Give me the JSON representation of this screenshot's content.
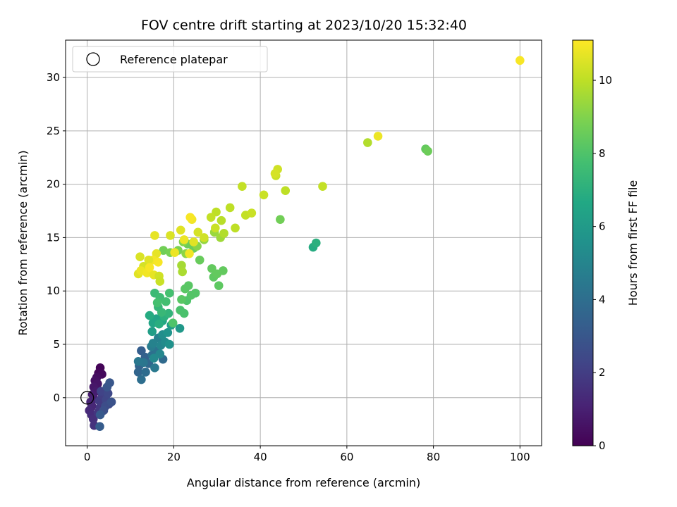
{
  "chart_data": {
    "type": "scatter",
    "title": "FOV centre drift starting at 2023/10/20 15:32:40",
    "xlabel": "Angular distance from reference (arcmin)",
    "ylabel": "Rotation from reference (arcmin)",
    "xlim": [
      -5,
      105
    ],
    "ylim": [
      -4.5,
      33.5
    ],
    "xticks": [
      0,
      20,
      40,
      60,
      80,
      100
    ],
    "yticks": [
      0,
      5,
      10,
      15,
      20,
      25,
      30
    ],
    "grid": true,
    "legend_position": "top-left",
    "legend": [
      {
        "label": "Reference platepar",
        "marker": "open-circle",
        "color": "#000000"
      }
    ],
    "reference_point": {
      "x": 0,
      "y": 0
    },
    "colorbar": {
      "label": "Hours from first FF file",
      "colormap": "viridis",
      "range": [
        0,
        11.1
      ],
      "ticks": [
        0,
        2,
        4,
        6,
        8,
        10
      ]
    },
    "points": [
      {
        "x": 3.0,
        "y": 2.8,
        "c": 0.1
      },
      {
        "x": 2.6,
        "y": 2.3,
        "c": 0.2
      },
      {
        "x": 3.4,
        "y": 2.2,
        "c": 0.3
      },
      {
        "x": 2.2,
        "y": 1.9,
        "c": 0.4
      },
      {
        "x": 1.8,
        "y": 1.6,
        "c": 0.5
      },
      {
        "x": 2.4,
        "y": 1.3,
        "c": 0.6
      },
      {
        "x": 1.5,
        "y": 1.0,
        "c": 0.7
      },
      {
        "x": 2.0,
        "y": 0.6,
        "c": 0.8
      },
      {
        "x": 1.2,
        "y": 0.3,
        "c": 0.9
      },
      {
        "x": 1.6,
        "y": -0.1,
        "c": 1.0
      },
      {
        "x": 0.8,
        "y": -0.4,
        "c": 1.1
      },
      {
        "x": 1.1,
        "y": -0.8,
        "c": 1.2
      },
      {
        "x": 0.5,
        "y": -1.2,
        "c": 1.3
      },
      {
        "x": 1.0,
        "y": -1.6,
        "c": 1.4
      },
      {
        "x": 1.4,
        "y": -2.0,
        "c": 1.5
      },
      {
        "x": 1.6,
        "y": -2.6,
        "c": 1.6
      },
      {
        "x": 2.5,
        "y": -1.4,
        "c": 1.7
      },
      {
        "x": 3.0,
        "y": -0.9,
        "c": 1.8
      },
      {
        "x": 2.8,
        "y": -0.3,
        "c": 1.9
      },
      {
        "x": 3.5,
        "y": 0.2,
        "c": 2.0
      },
      {
        "x": 4.0,
        "y": 0.5,
        "c": 2.1
      },
      {
        "x": 3.2,
        "y": 0.6,
        "c": 2.2
      },
      {
        "x": 4.4,
        "y": -0.2,
        "c": 2.3
      },
      {
        "x": 4.8,
        "y": 0.4,
        "c": 2.4
      },
      {
        "x": 5.0,
        "y": -0.6,
        "c": 2.5
      },
      {
        "x": 4.2,
        "y": -0.8,
        "c": 2.6
      },
      {
        "x": 3.8,
        "y": -1.2,
        "c": 2.7
      },
      {
        "x": 5.6,
        "y": -0.4,
        "c": 2.8
      },
      {
        "x": 4.6,
        "y": 1.0,
        "c": 2.9
      },
      {
        "x": 5.2,
        "y": 1.4,
        "c": 3.0
      },
      {
        "x": 3.0,
        "y": -1.6,
        "c": 3.1
      },
      {
        "x": 2.9,
        "y": -2.7,
        "c": 3.2
      },
      {
        "x": 12.5,
        "y": 4.4,
        "c": 3.3
      },
      {
        "x": 13.4,
        "y": 3.8,
        "c": 3.4
      },
      {
        "x": 12.0,
        "y": 3.0,
        "c": 3.5
      },
      {
        "x": 11.8,
        "y": 2.4,
        "c": 3.6
      },
      {
        "x": 14.2,
        "y": 3.2,
        "c": 3.7
      },
      {
        "x": 17.5,
        "y": 3.6,
        "c": 3.8
      },
      {
        "x": 13.5,
        "y": 2.4,
        "c": 3.9
      },
      {
        "x": 12.5,
        "y": 1.7,
        "c": 4.0
      },
      {
        "x": 15.0,
        "y": 4.0,
        "c": 4.1
      },
      {
        "x": 16.2,
        "y": 4.4,
        "c": 4.2
      },
      {
        "x": 13.0,
        "y": 3.3,
        "c": 4.3
      },
      {
        "x": 11.8,
        "y": 3.4,
        "c": 4.4
      },
      {
        "x": 15.6,
        "y": 2.8,
        "c": 4.5
      },
      {
        "x": 14.8,
        "y": 4.8,
        "c": 4.6
      },
      {
        "x": 16.4,
        "y": 5.6,
        "c": 4.8
      },
      {
        "x": 15.2,
        "y": 5.1,
        "c": 4.9
      },
      {
        "x": 17.0,
        "y": 4.9,
        "c": 5.0
      },
      {
        "x": 16.8,
        "y": 4.1,
        "c": 5.1
      },
      {
        "x": 15.4,
        "y": 3.7,
        "c": 5.2
      },
      {
        "x": 18.0,
        "y": 5.2,
        "c": 5.3
      },
      {
        "x": 17.4,
        "y": 5.9,
        "c": 5.4
      },
      {
        "x": 19.0,
        "y": 5.0,
        "c": 5.6
      },
      {
        "x": 18.6,
        "y": 6.1,
        "c": 5.7
      },
      {
        "x": 21.4,
        "y": 6.5,
        "c": 5.9
      },
      {
        "x": 19.4,
        "y": 6.8,
        "c": 6.1
      },
      {
        "x": 15.0,
        "y": 6.2,
        "c": 6.2
      },
      {
        "x": 16.0,
        "y": 7.4,
        "c": 6.4
      },
      {
        "x": 15.2,
        "y": 7.0,
        "c": 6.5
      },
      {
        "x": 17.4,
        "y": 7.2,
        "c": 6.6
      },
      {
        "x": 14.4,
        "y": 7.7,
        "c": 6.8
      },
      {
        "x": 16.6,
        "y": 6.9,
        "c": 6.9
      },
      {
        "x": 17.8,
        "y": 7.6,
        "c": 7.0
      },
      {
        "x": 18.8,
        "y": 7.9,
        "c": 7.2
      },
      {
        "x": 16.4,
        "y": 8.5,
        "c": 7.3
      },
      {
        "x": 17.2,
        "y": 8.0,
        "c": 7.4
      },
      {
        "x": 15.6,
        "y": 9.8,
        "c": 7.5
      },
      {
        "x": 16.8,
        "y": 9.4,
        "c": 7.6
      },
      {
        "x": 18.2,
        "y": 9.0,
        "c": 7.7
      },
      {
        "x": 19.0,
        "y": 9.8,
        "c": 7.8
      },
      {
        "x": 16.2,
        "y": 8.9,
        "c": 7.8
      },
      {
        "x": 22.4,
        "y": 7.9,
        "c": 7.9
      },
      {
        "x": 21.5,
        "y": 8.2,
        "c": 7.9
      },
      {
        "x": 19.8,
        "y": 7.0,
        "c": 8.0
      },
      {
        "x": 23.0,
        "y": 9.1,
        "c": 8.0
      },
      {
        "x": 24.0,
        "y": 9.6,
        "c": 8.1
      },
      {
        "x": 25.0,
        "y": 9.8,
        "c": 8.1
      },
      {
        "x": 22.6,
        "y": 10.2,
        "c": 8.2
      },
      {
        "x": 23.4,
        "y": 10.5,
        "c": 8.2
      },
      {
        "x": 21.8,
        "y": 9.2,
        "c": 8.2
      },
      {
        "x": 30.4,
        "y": 10.5,
        "c": 8.3
      },
      {
        "x": 29.2,
        "y": 11.3,
        "c": 8.3
      },
      {
        "x": 31.4,
        "y": 11.9,
        "c": 8.4
      },
      {
        "x": 28.8,
        "y": 12.1,
        "c": 8.4
      },
      {
        "x": 30.0,
        "y": 11.6,
        "c": 8.4
      },
      {
        "x": 26.0,
        "y": 12.9,
        "c": 8.5
      },
      {
        "x": 23.2,
        "y": 14.4,
        "c": 8.6
      },
      {
        "x": 24.6,
        "y": 14.0,
        "c": 8.6
      },
      {
        "x": 17.6,
        "y": 13.8,
        "c": 8.7
      },
      {
        "x": 19.2,
        "y": 13.6,
        "c": 8.8
      },
      {
        "x": 21.0,
        "y": 13.8,
        "c": 8.9
      },
      {
        "x": 22.2,
        "y": 14.6,
        "c": 9.0
      },
      {
        "x": 25.4,
        "y": 14.2,
        "c": 9.1
      },
      {
        "x": 22.8,
        "y": 13.5,
        "c": 9.2
      },
      {
        "x": 27.0,
        "y": 14.8,
        "c": 9.3
      },
      {
        "x": 29.4,
        "y": 15.5,
        "c": 9.4
      },
      {
        "x": 30.8,
        "y": 15.0,
        "c": 9.5
      },
      {
        "x": 21.8,
        "y": 12.4,
        "c": 9.6
      },
      {
        "x": 22.0,
        "y": 11.8,
        "c": 9.7
      },
      {
        "x": 78.2,
        "y": 23.3,
        "c": 8.4
      },
      {
        "x": 78.7,
        "y": 23.1,
        "c": 8.6
      },
      {
        "x": 52.2,
        "y": 14.1,
        "c": 6.8
      },
      {
        "x": 52.9,
        "y": 14.5,
        "c": 7.0
      },
      {
        "x": 44.6,
        "y": 16.7,
        "c": 8.7
      },
      {
        "x": 64.8,
        "y": 23.9,
        "c": 9.8
      },
      {
        "x": 67.2,
        "y": 24.5,
        "c": 10.8
      },
      {
        "x": 54.4,
        "y": 19.8,
        "c": 10.1
      },
      {
        "x": 45.8,
        "y": 19.4,
        "c": 10.0
      },
      {
        "x": 43.6,
        "y": 20.8,
        "c": 10.2
      },
      {
        "x": 44.0,
        "y": 21.4,
        "c": 10.3
      },
      {
        "x": 43.4,
        "y": 21.0,
        "c": 10.4
      },
      {
        "x": 40.8,
        "y": 19.0,
        "c": 10.2
      },
      {
        "x": 35.8,
        "y": 19.8,
        "c": 10.1
      },
      {
        "x": 33.0,
        "y": 17.8,
        "c": 10.0
      },
      {
        "x": 36.6,
        "y": 17.1,
        "c": 10.1
      },
      {
        "x": 38.0,
        "y": 17.3,
        "c": 10.2
      },
      {
        "x": 34.2,
        "y": 15.9,
        "c": 10.0
      },
      {
        "x": 31.0,
        "y": 16.6,
        "c": 9.9
      },
      {
        "x": 29.8,
        "y": 17.4,
        "c": 10.0
      },
      {
        "x": 28.6,
        "y": 16.9,
        "c": 10.1
      },
      {
        "x": 31.6,
        "y": 15.4,
        "c": 9.8
      },
      {
        "x": 29.6,
        "y": 15.9,
        "c": 10.2
      },
      {
        "x": 27.0,
        "y": 15.0,
        "c": 10.3
      },
      {
        "x": 25.6,
        "y": 15.5,
        "c": 10.4
      },
      {
        "x": 24.2,
        "y": 16.7,
        "c": 10.9
      },
      {
        "x": 23.8,
        "y": 16.9,
        "c": 11.0
      },
      {
        "x": 21.6,
        "y": 15.7,
        "c": 10.6
      },
      {
        "x": 19.2,
        "y": 15.2,
        "c": 10.5
      },
      {
        "x": 15.6,
        "y": 15.2,
        "c": 10.7
      },
      {
        "x": 22.4,
        "y": 14.8,
        "c": 10.8
      },
      {
        "x": 24.6,
        "y": 14.6,
        "c": 10.6
      },
      {
        "x": 23.6,
        "y": 13.5,
        "c": 10.9
      },
      {
        "x": 20.2,
        "y": 13.6,
        "c": 10.8
      },
      {
        "x": 16.0,
        "y": 13.5,
        "c": 10.7
      },
      {
        "x": 15.2,
        "y": 12.9,
        "c": 10.9
      },
      {
        "x": 16.4,
        "y": 12.7,
        "c": 11.0
      },
      {
        "x": 14.2,
        "y": 12.9,
        "c": 10.6
      },
      {
        "x": 12.2,
        "y": 13.2,
        "c": 10.5
      },
      {
        "x": 13.0,
        "y": 12.3,
        "c": 10.4
      },
      {
        "x": 11.8,
        "y": 11.6,
        "c": 10.6
      },
      {
        "x": 12.4,
        "y": 11.9,
        "c": 10.8
      },
      {
        "x": 13.8,
        "y": 11.7,
        "c": 10.9
      },
      {
        "x": 14.4,
        "y": 12.2,
        "c": 11.0
      },
      {
        "x": 15.4,
        "y": 11.5,
        "c": 10.7
      },
      {
        "x": 16.6,
        "y": 11.4,
        "c": 10.3
      },
      {
        "x": 16.8,
        "y": 10.9,
        "c": 10.2
      },
      {
        "x": 100.0,
        "y": 31.6,
        "c": 11.0
      }
    ]
  }
}
